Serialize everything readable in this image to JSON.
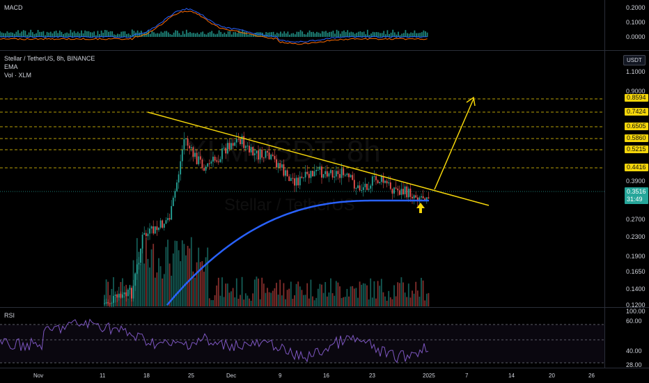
{
  "macd": {
    "label": "MACD",
    "ticks": [
      "0.2000",
      "0.1000",
      "0.0000"
    ]
  },
  "main": {
    "symbol": "Stellar / TetherUS, 8h, BINANCE",
    "ema_label": "EMA",
    "vol_label": "Vol · XLM",
    "watermark_ticker": "XLMUSDT, 8h",
    "watermark_name": "Stellar / TetherUS",
    "currency": "USDT",
    "ticks": [
      "1.1000",
      "0.9000",
      "0.3900",
      "0.2700",
      "0.2300",
      "0.1900",
      "0.1650",
      "0.1400",
      "0.1200"
    ],
    "levels": [
      "0.8594",
      "0.7424",
      "0.6505",
      "0.5860",
      "0.5215",
      "0.4416"
    ],
    "current_price": "0.3516",
    "countdown": "31:49",
    "colors": {
      "up": "#26a69a",
      "down": "#ef5350",
      "ema": "#2962ff",
      "trend": "#f5d60a",
      "rsi": "#7e57c2"
    }
  },
  "rsi": {
    "label": "RSI",
    "ticks": [
      "100.00",
      "60.00",
      "40.00",
      "28.00"
    ]
  },
  "dates": [
    "Nov",
    "11",
    "18",
    "25",
    "Dec",
    "9",
    "16",
    "23",
    "2025",
    "7",
    "14",
    "20",
    "26"
  ]
}
